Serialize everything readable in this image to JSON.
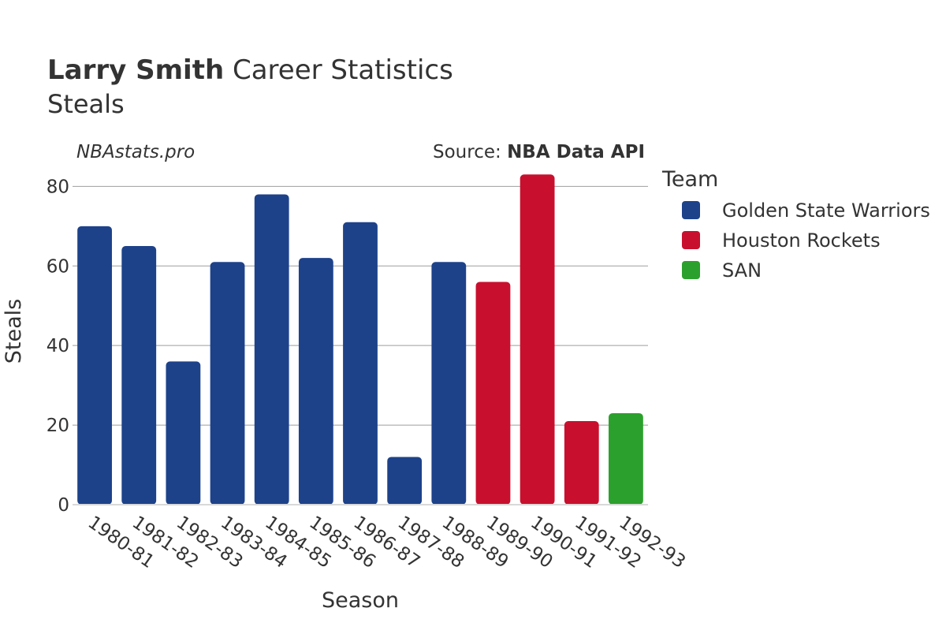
{
  "title": {
    "bold": "Larry Smith",
    "rest": " Career Statistics",
    "subtitle": "Steals"
  },
  "annotations": {
    "watermark": "NBAstats.pro",
    "source_prefix": "Source: ",
    "source_bold": "NBA Data API"
  },
  "legend": {
    "title": "Team",
    "placement": "right",
    "items": [
      {
        "label": "Golden State Warriors",
        "color": "#1d428a"
      },
      {
        "label": "Houston Rockets",
        "color": "#c8102e"
      },
      {
        "label": "SAN",
        "color": "#2ca02c"
      }
    ]
  },
  "chart_data": {
    "type": "bar",
    "title": "Larry Smith Career Statistics",
    "subtitle": "Steals",
    "xlabel": "Season",
    "ylabel": "Steals",
    "ylim": [
      0,
      88
    ],
    "yticks": [
      0,
      20,
      40,
      60,
      80
    ],
    "grid": true,
    "legend_placement": "right",
    "categories": [
      "1980-81",
      "1981-82",
      "1982-83",
      "1983-84",
      "1984-85",
      "1985-86",
      "1986-87",
      "1987-88",
      "1988-89",
      "1989-90",
      "1990-91",
      "1991-92",
      "1992-93"
    ],
    "values": [
      70,
      65,
      36,
      61,
      78,
      62,
      71,
      12,
      61,
      56,
      83,
      21,
      23
    ],
    "teams": [
      "Golden State Warriors",
      "Golden State Warriors",
      "Golden State Warriors",
      "Golden State Warriors",
      "Golden State Warriors",
      "Golden State Warriors",
      "Golden State Warriors",
      "Golden State Warriors",
      "Golden State Warriors",
      "Houston Rockets",
      "Houston Rockets",
      "Houston Rockets",
      "SAN"
    ],
    "colors": {
      "Golden State Warriors": "#1d428a",
      "Houston Rockets": "#c8102e",
      "SAN": "#2ca02c"
    }
  }
}
